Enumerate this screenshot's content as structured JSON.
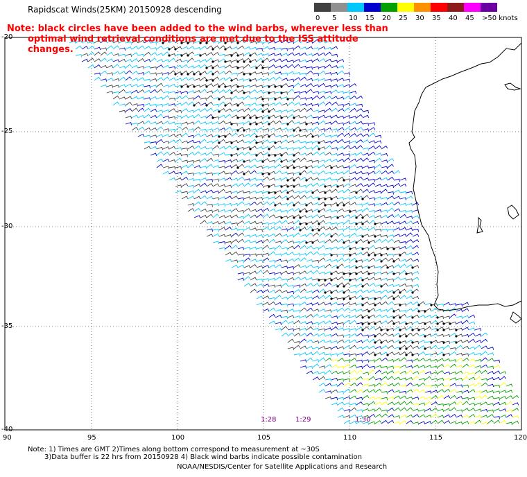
{
  "title": "Rapidscat Winds(25KM) 20150928 descending",
  "note": {
    "line1": "Note: black circles have been added to the wind barbs, wherever less than",
    "line2": "optimal wind retrieval conditions are met due to the ISS attitude changes."
  },
  "colorbar": {
    "labels": [
      "0",
      "5",
      "10",
      "15",
      "20",
      "25",
      "30",
      "35",
      "40",
      "45",
      ">50 knots"
    ],
    "colors": [
      "#404040",
      "#909090",
      "#00c8ff",
      "#0000d0",
      "#00a000",
      "#ffff00",
      "#ff9000",
      "#ff0000",
      "#8b1a1a",
      "#ff00ff",
      "#6a00a0"
    ]
  },
  "map": {
    "lat_labels": [
      "-20",
      "-25",
      "-30",
      "-35",
      "-40"
    ],
    "lon_labels": [
      "90",
      "95",
      "100",
      "105",
      "110",
      "115",
      "120"
    ],
    "time_labels": [
      "1:28",
      "1:29",
      "1:30"
    ]
  },
  "footer": {
    "line1": "Note: 1) Times are GMT 2)Times along bottom correspond to measurement at ~30S",
    "line2": "3)Data buffer is 22 hrs from 20150928 4) Black wind barbs indicate possible contamination",
    "line3": "NOAA/NESDIS/Center for Satellite Applications and Research"
  }
}
